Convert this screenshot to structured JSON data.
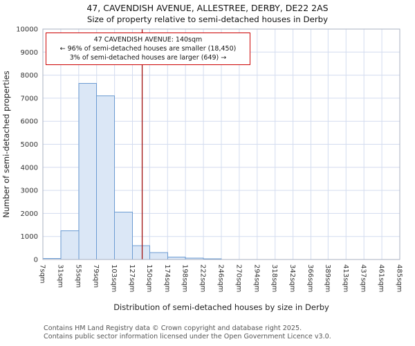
{
  "chart_data": {
    "type": "bar",
    "title": "47, CAVENDISH AVENUE, ALLESTREE, DERBY, DE22 2AS",
    "subtitle": "Size of property relative to semi-detached houses in Derby",
    "xlabel": "Distribution of semi-detached houses by size in Derby",
    "ylabel": "Number of semi-detached properties",
    "xlim": [
      7,
      485
    ],
    "ylim": [
      0,
      10000
    ],
    "ytick_step": 1000,
    "categories": [
      7,
      31,
      55,
      79,
      103,
      127,
      150,
      174,
      198,
      222,
      246,
      270,
      294,
      318,
      342,
      366,
      389,
      413,
      437,
      461,
      485
    ],
    "tick_labels": [
      "7sqm",
      "31sqm",
      "55sqm",
      "79sqm",
      "103sqm",
      "127sqm",
      "150sqm",
      "174sqm",
      "198sqm",
      "222sqm",
      "246sqm",
      "270sqm",
      "294sqm",
      "318sqm",
      "342sqm",
      "366sqm",
      "389sqm",
      "413sqm",
      "437sqm",
      "461sqm",
      "485sqm"
    ],
    "values": [
      50,
      1250,
      7650,
      7100,
      2050,
      600,
      300,
      100,
      60,
      30,
      0,
      0,
      0,
      0,
      0,
      0,
      0,
      0,
      0,
      0
    ],
    "marker": {
      "value": 140,
      "label": "140sqm"
    },
    "annotation": {
      "lines": [
        "47 CAVENDISH AVENUE: 140sqm",
        "← 96% of semi-detached houses are smaller (18,450)",
        "3% of semi-detached houses are larger (649) →"
      ]
    },
    "legend": null,
    "grid": true,
    "colors": {
      "bar_fill": "#dbe7f6",
      "bar_edge": "#6b9bd2",
      "grid": "#d3dcef",
      "marker": "#a01010",
      "annotation_border": "#cc0000",
      "plot_bg": "#ffffff",
      "plot_border": "#aab2c2"
    }
  },
  "footer": {
    "line1": "Contains HM Land Registry data © Crown copyright and database right 2025.",
    "line2": "Contains public sector information licensed under the Open Government Licence v3.0."
  }
}
